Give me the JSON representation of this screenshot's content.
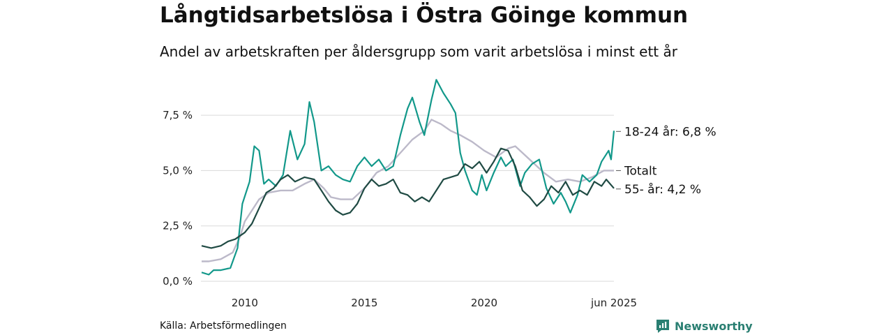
{
  "header": {
    "title": "Långtidsarbetslösa i Östra Göinge kommun",
    "subtitle": "Andel av arbetskraften per åldersgrupp som varit arbetslösa i minst ett år"
  },
  "footer": {
    "source": "Källa: Arbetsförmedlingen",
    "brand": "Newsworthy"
  },
  "colors": {
    "youth": "#12988a",
    "total": "#bcb9c9",
    "older": "#1f4a43",
    "grid": "#d9d9d9",
    "brand": "#2a7f72"
  },
  "chart_data": {
    "type": "line",
    "x_unit": "year",
    "xlim": [
      2008.17,
      2025.42
    ],
    "ylim": [
      0,
      9.3
    ],
    "y_ticks": [
      {
        "value": 0,
        "label": "0,0 %"
      },
      {
        "value": 2.5,
        "label": "2,5 %"
      },
      {
        "value": 5.0,
        "label": "5,0 %"
      },
      {
        "value": 7.5,
        "label": "7,5 %"
      }
    ],
    "x_ticks": [
      {
        "value": 2010,
        "label": "2010"
      },
      {
        "value": 2015,
        "label": "2015"
      },
      {
        "value": 2020,
        "label": "2020"
      },
      {
        "value": 2025.42,
        "label": "jun 2025"
      }
    ],
    "grid": "horizontal",
    "series": [
      {
        "key": "total",
        "label": "Totalt",
        "points": [
          [
            2008.2,
            0.9
          ],
          [
            2008.5,
            0.9
          ],
          [
            2009.0,
            1.0
          ],
          [
            2009.5,
            1.3
          ],
          [
            2009.8,
            2.0
          ],
          [
            2010.0,
            2.7
          ],
          [
            2010.3,
            3.2
          ],
          [
            2010.6,
            3.7
          ],
          [
            2011.0,
            4.0
          ],
          [
            2011.5,
            4.1
          ],
          [
            2012.0,
            4.1
          ],
          [
            2012.5,
            4.4
          ],
          [
            2012.9,
            4.6
          ],
          [
            2013.3,
            4.2
          ],
          [
            2013.6,
            3.8
          ],
          [
            2014.0,
            3.7
          ],
          [
            2014.5,
            3.7
          ],
          [
            2015.0,
            4.2
          ],
          [
            2015.5,
            4.9
          ],
          [
            2016.0,
            5.2
          ],
          [
            2016.5,
            5.8
          ],
          [
            2017.0,
            6.4
          ],
          [
            2017.5,
            6.8
          ],
          [
            2017.8,
            7.3
          ],
          [
            2018.2,
            7.1
          ],
          [
            2018.6,
            6.8
          ],
          [
            2019.0,
            6.6
          ],
          [
            2019.5,
            6.3
          ],
          [
            2020.0,
            5.9
          ],
          [
            2020.5,
            5.6
          ],
          [
            2021.0,
            6.0
          ],
          [
            2021.3,
            6.1
          ],
          [
            2021.6,
            5.8
          ],
          [
            2022.0,
            5.4
          ],
          [
            2022.5,
            4.9
          ],
          [
            2023.0,
            4.5
          ],
          [
            2023.5,
            4.6
          ],
          [
            2024.0,
            4.5
          ],
          [
            2024.5,
            4.7
          ],
          [
            2025.0,
            5.0
          ],
          [
            2025.42,
            5.0
          ]
        ]
      },
      {
        "key": "youth",
        "label": "18-24 år: 6,8 %",
        "points": [
          [
            2008.2,
            0.4
          ],
          [
            2008.5,
            0.3
          ],
          [
            2008.7,
            0.5
          ],
          [
            2009.0,
            0.5
          ],
          [
            2009.4,
            0.6
          ],
          [
            2009.7,
            1.5
          ],
          [
            2009.9,
            3.5
          ],
          [
            2010.2,
            4.5
          ],
          [
            2010.4,
            6.1
          ],
          [
            2010.6,
            5.9
          ],
          [
            2010.8,
            4.4
          ],
          [
            2011.0,
            4.6
          ],
          [
            2011.3,
            4.3
          ],
          [
            2011.6,
            4.8
          ],
          [
            2011.9,
            6.8
          ],
          [
            2012.2,
            5.5
          ],
          [
            2012.5,
            6.2
          ],
          [
            2012.7,
            8.1
          ],
          [
            2012.9,
            7.2
          ],
          [
            2013.2,
            5.0
          ],
          [
            2013.5,
            5.2
          ],
          [
            2013.8,
            4.8
          ],
          [
            2014.1,
            4.6
          ],
          [
            2014.4,
            4.5
          ],
          [
            2014.7,
            5.2
          ],
          [
            2015.0,
            5.6
          ],
          [
            2015.3,
            5.2
          ],
          [
            2015.6,
            5.5
          ],
          [
            2015.9,
            5.0
          ],
          [
            2016.2,
            5.2
          ],
          [
            2016.5,
            6.6
          ],
          [
            2016.8,
            7.8
          ],
          [
            2017.0,
            8.3
          ],
          [
            2017.3,
            7.2
          ],
          [
            2017.5,
            6.6
          ],
          [
            2017.8,
            8.2
          ],
          [
            2018.0,
            9.1
          ],
          [
            2018.3,
            8.5
          ],
          [
            2018.6,
            8.0
          ],
          [
            2018.8,
            7.6
          ],
          [
            2019.0,
            5.8
          ],
          [
            2019.2,
            5.0
          ],
          [
            2019.5,
            4.1
          ],
          [
            2019.7,
            3.9
          ],
          [
            2019.9,
            4.8
          ],
          [
            2020.1,
            4.1
          ],
          [
            2020.4,
            4.9
          ],
          [
            2020.7,
            5.6
          ],
          [
            2020.9,
            5.2
          ],
          [
            2021.2,
            5.5
          ],
          [
            2021.5,
            4.3
          ],
          [
            2021.7,
            4.9
          ],
          [
            2022.0,
            5.3
          ],
          [
            2022.3,
            5.5
          ],
          [
            2022.6,
            4.2
          ],
          [
            2022.9,
            3.5
          ],
          [
            2023.2,
            4.0
          ],
          [
            2023.4,
            3.6
          ],
          [
            2023.6,
            3.1
          ],
          [
            2023.9,
            3.9
          ],
          [
            2024.1,
            4.8
          ],
          [
            2024.4,
            4.5
          ],
          [
            2024.7,
            4.8
          ],
          [
            2024.9,
            5.4
          ],
          [
            2025.2,
            5.9
          ],
          [
            2025.3,
            5.5
          ],
          [
            2025.42,
            6.8
          ]
        ]
      },
      {
        "key": "older",
        "label": "55- år: 4,2 %",
        "points": [
          [
            2008.2,
            1.6
          ],
          [
            2008.6,
            1.5
          ],
          [
            2009.0,
            1.6
          ],
          [
            2009.3,
            1.8
          ],
          [
            2009.6,
            1.9
          ],
          [
            2010.0,
            2.2
          ],
          [
            2010.3,
            2.6
          ],
          [
            2010.6,
            3.3
          ],
          [
            2010.9,
            4.0
          ],
          [
            2011.2,
            4.2
          ],
          [
            2011.5,
            4.6
          ],
          [
            2011.8,
            4.8
          ],
          [
            2012.1,
            4.5
          ],
          [
            2012.5,
            4.7
          ],
          [
            2012.9,
            4.6
          ],
          [
            2013.2,
            4.1
          ],
          [
            2013.5,
            3.6
          ],
          [
            2013.8,
            3.2
          ],
          [
            2014.1,
            3.0
          ],
          [
            2014.4,
            3.1
          ],
          [
            2014.7,
            3.5
          ],
          [
            2015.0,
            4.2
          ],
          [
            2015.3,
            4.6
          ],
          [
            2015.6,
            4.3
          ],
          [
            2015.9,
            4.4
          ],
          [
            2016.2,
            4.6
          ],
          [
            2016.5,
            4.0
          ],
          [
            2016.8,
            3.9
          ],
          [
            2017.1,
            3.6
          ],
          [
            2017.4,
            3.8
          ],
          [
            2017.7,
            3.6
          ],
          [
            2018.0,
            4.1
          ],
          [
            2018.3,
            4.6
          ],
          [
            2018.6,
            4.7
          ],
          [
            2018.9,
            4.8
          ],
          [
            2019.2,
            5.3
          ],
          [
            2019.5,
            5.1
          ],
          [
            2019.8,
            5.4
          ],
          [
            2020.1,
            4.9
          ],
          [
            2020.4,
            5.4
          ],
          [
            2020.7,
            6.0
          ],
          [
            2021.0,
            5.9
          ],
          [
            2021.3,
            5.2
          ],
          [
            2021.6,
            4.1
          ],
          [
            2021.9,
            3.8
          ],
          [
            2022.2,
            3.4
          ],
          [
            2022.5,
            3.7
          ],
          [
            2022.8,
            4.3
          ],
          [
            2023.1,
            4.0
          ],
          [
            2023.4,
            4.5
          ],
          [
            2023.7,
            3.9
          ],
          [
            2024.0,
            4.1
          ],
          [
            2024.3,
            3.9
          ],
          [
            2024.6,
            4.5
          ],
          [
            2024.9,
            4.3
          ],
          [
            2025.1,
            4.6
          ],
          [
            2025.42,
            4.2
          ]
        ]
      }
    ]
  }
}
